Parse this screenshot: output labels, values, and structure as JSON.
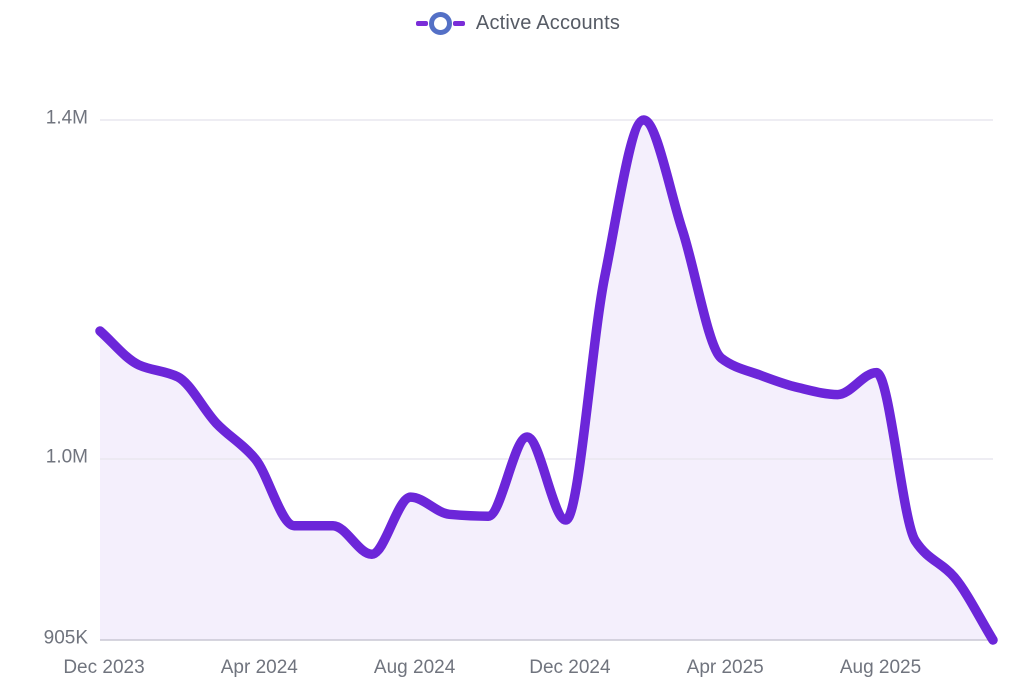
{
  "legend": {
    "label": "Active Accounts"
  },
  "colors": {
    "line": "#6c26d9",
    "area_fill": "rgba(108,38,217,0.075)",
    "legend_marker_ring": "#5470c6",
    "legend_marker_dash": "#7a2dd8",
    "legend_text": "#565b65",
    "axis_text": "#70747e",
    "gridline": "#e9e7ef",
    "axis_line": "#c9c7d3"
  },
  "chart_data": {
    "type": "area",
    "title": "Active Accounts",
    "legend_position": "top-center",
    "grid": true,
    "smooth": true,
    "x": [
      "Dec 2023",
      "Jan 2024",
      "Feb 2024",
      "Mar 2024",
      "Apr 2024",
      "May 2024",
      "Jun 2024",
      "Jul 2024",
      "Aug 2024",
      "Sep 2024",
      "Oct 2024",
      "Nov 2024",
      "Dec 2024",
      "Jan 2025",
      "Feb 2025",
      "Mar 2025",
      "Apr 2025",
      "May 2025",
      "Jun 2025",
      "Jul 2025",
      "Aug 2025",
      "Sep 2025",
      "Oct 2025",
      "Nov 2025"
    ],
    "series": [
      {
        "name": "Active Accounts",
        "values": [
          1151,
          1111,
          1097,
          1042,
          1000,
          965,
          965,
          950,
          980,
          971,
          970,
          1026,
          968,
          1215,
          1400,
          1270,
          1119,
          1099,
          1084,
          1076,
          1102,
          957,
          938,
          905
        ]
      }
    ],
    "values_unit": "thousands of accounts",
    "ylim": [
      905,
      1400
    ],
    "y_ticks": [
      {
        "label": "1.4M",
        "value": 1400
      },
      {
        "label": "1.0M",
        "value": 1000
      },
      {
        "label": "905K",
        "value": 905
      }
    ],
    "x_tick_labels": [
      "Dec 2023",
      "Apr 2024",
      "Aug 2024",
      "Dec 2024",
      "Apr 2025",
      "Aug 2025"
    ]
  }
}
